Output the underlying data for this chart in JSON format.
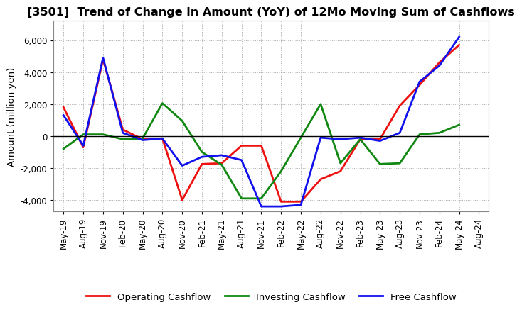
{
  "title": "[3501]  Trend of Change in Amount (YoY) of 12Mo Moving Sum of Cashflows",
  "ylabel": "Amount (million yen)",
  "xlabels": [
    "May-19",
    "Aug-19",
    "Nov-19",
    "Feb-20",
    "May-20",
    "Aug-20",
    "Nov-20",
    "Feb-21",
    "May-21",
    "Aug-21",
    "Nov-21",
    "Feb-22",
    "May-22",
    "Aug-22",
    "Nov-22",
    "Feb-23",
    "May-23",
    "Aug-23",
    "Nov-23",
    "Feb-24",
    "May-24",
    "Aug-24"
  ],
  "operating_cashflow": [
    1800,
    -700,
    4800,
    400,
    -200,
    -150,
    -4000,
    -1750,
    -1700,
    -600,
    -600,
    -4100,
    -4100,
    -2700,
    -2200,
    -200,
    -200,
    1900,
    3200,
    4600,
    5700,
    null
  ],
  "investing_cashflow": [
    -800,
    100,
    100,
    -200,
    -150,
    2050,
    950,
    -1000,
    -1800,
    -3900,
    -3900,
    -2200,
    -100,
    2000,
    -1700,
    -200,
    -1750,
    -1700,
    100,
    200,
    700,
    null
  ],
  "free_cashflow": [
    1300,
    -600,
    4900,
    200,
    -250,
    -150,
    -1850,
    -1300,
    -1200,
    -1500,
    -4400,
    -4400,
    -4300,
    -100,
    -200,
    -100,
    -300,
    200,
    3400,
    4400,
    6200,
    null
  ],
  "operating_color": "#EE1111",
  "investing_color": "#118811",
  "free_color": "#1111EE",
  "ylim": [
    -4700,
    7200
  ],
  "yticks": [
    -4000,
    -2000,
    0,
    2000,
    4000,
    6000
  ],
  "background_color": "#FFFFFF",
  "grid_color": "#AAAAAA",
  "title_fontsize": 11.5,
  "axis_fontsize": 9.5,
  "tick_fontsize": 8.5,
  "legend_fontsize": 9.5,
  "linewidth": 2.0
}
